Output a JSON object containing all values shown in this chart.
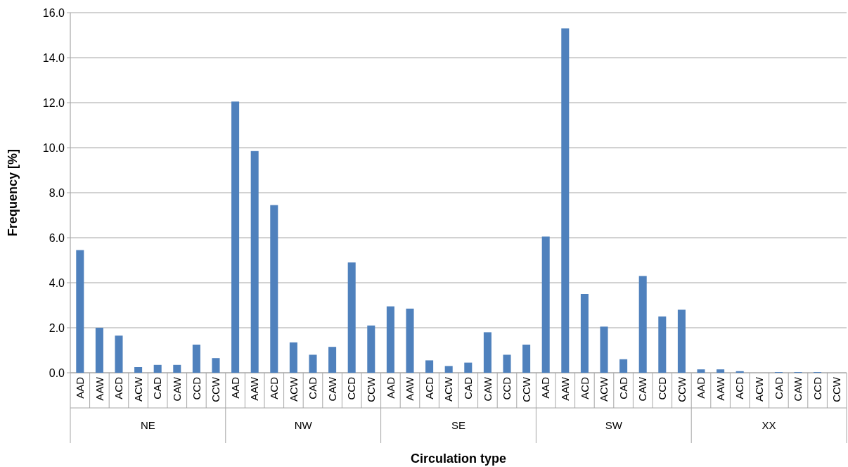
{
  "chart_data": {
    "type": "bar",
    "xlabel": "Circulation type",
    "ylabel": "Frequency [%]",
    "categories": [
      "AAD",
      "AAW",
      "ACD",
      "ACW",
      "CAD",
      "CAW",
      "CCD",
      "CCW",
      "AAD",
      "AAW",
      "ACD",
      "ACW",
      "CAD",
      "CAW",
      "CCD",
      "CCW",
      "AAD",
      "AAW",
      "ACD",
      "ACW",
      "CAD",
      "CAW",
      "CCD",
      "CCW",
      "AAD",
      "AAW",
      "ACD",
      "ACW",
      "CAD",
      "CAW",
      "CCD",
      "CCW",
      "AAD",
      "AAW",
      "ACD",
      "ACW",
      "CAD",
      "CAW",
      "CCD",
      "CCW"
    ],
    "values": [
      5.45,
      2.0,
      1.65,
      0.25,
      0.35,
      0.35,
      1.25,
      0.65,
      12.05,
      9.85,
      7.45,
      1.35,
      0.8,
      1.15,
      4.9,
      2.1,
      2.95,
      2.85,
      0.55,
      0.3,
      0.45,
      1.8,
      0.8,
      1.25,
      6.05,
      15.3,
      3.5,
      2.05,
      0.6,
      4.3,
      2.5,
      2.8,
      0.15,
      0.15,
      0.07,
      0,
      0.03,
      0.03,
      0.03,
      0
    ],
    "color": "#4f81bd",
    "annotations": [
      "NE",
      "NW",
      "SE",
      "SW",
      "XX"
    ],
    "ylim": [
      0,
      16
    ],
    "yticks": [
      {
        "value": 0,
        "label": "0.0"
      },
      {
        "value": 2,
        "label": "2.0"
      },
      {
        "value": 4,
        "label": "4.0"
      },
      {
        "value": 6,
        "label": "6.0"
      },
      {
        "value": 8,
        "label": "8.0"
      },
      {
        "value": 10,
        "label": "10.0"
      },
      {
        "value": 12,
        "label": "12.0"
      },
      {
        "value": 14,
        "label": "14.0"
      },
      {
        "value": 16,
        "label": "16.0"
      }
    ],
    "grid": "y"
  }
}
